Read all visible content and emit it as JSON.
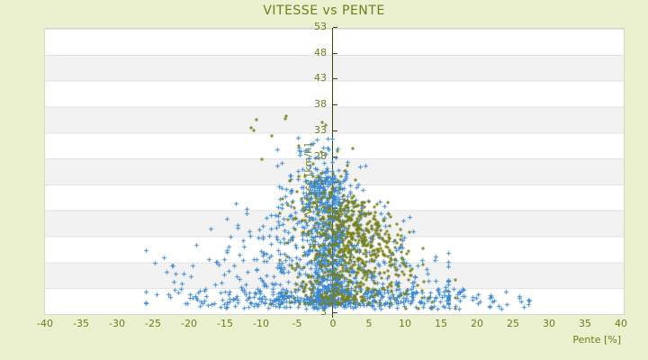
{
  "window": {
    "kind": "static-chart-view"
  },
  "chart_data": {
    "type": "scatter",
    "title": "VITESSE vs PENTE",
    "xlabel": "Pente [%]",
    "ylabel": "Vitesse [km/h]",
    "xlim": [
      -40,
      40
    ],
    "ylim": [
      3,
      53
    ],
    "x_ticks": [
      -40,
      -35,
      -30,
      -25,
      -20,
      -15,
      -10,
      -5,
      0,
      5,
      10,
      15,
      20,
      25,
      30,
      35,
      40
    ],
    "y_ticks": [
      53,
      48,
      43,
      38,
      33,
      28,
      23,
      18,
      13,
      8,
      3
    ],
    "grid": "horizontal-bands-alternating",
    "legend": "none",
    "colors": {
      "background": "#ebf0ce",
      "band_gray": "#f2f2f2",
      "band_white": "#ffffff",
      "axis_line": "#3f470e",
      "label_olive": "#6f7d1c",
      "series_blue": "#3e8ad2",
      "series_olive": "#78801a"
    },
    "series": [
      {
        "name": "vitesse-pente-bleu",
        "marker": "plus",
        "color": "#3e8ad2",
        "approx_count": 1465,
        "clusters": [
          {
            "kind": "column",
            "n": 450,
            "p_mean": -0.5,
            "p_sd": 1.4,
            "v_min": 4.5,
            "v_span": 24,
            "v_pow": 1.5
          },
          {
            "kind": "fan",
            "n": 650,
            "v_min": 4.5,
            "v_span": 22,
            "v_pow": 1.4,
            "p_mean": -2,
            "spread_ref": 29,
            "spread_k": 0.55,
            "p_clip": [
              -26,
              16
            ]
          },
          {
            "kind": "bottom",
            "n": 260,
            "v_min": 3.8,
            "v_span": 3.5,
            "p_mean": 0,
            "p_sd": 8.5,
            "p_clip": [
              -23,
              28
            ]
          },
          {
            "kind": "righttail",
            "n": 60,
            "v_min": 3.8,
            "v_span": 3.5,
            "p_min": 8,
            "p_span": 20
          },
          {
            "kind": "top",
            "n": 45,
            "v_min": 25,
            "v_span": 9,
            "p_mean": -3,
            "p_sd": 2.6
          }
        ]
      },
      {
        "name": "vitesse-pente-olive",
        "marker": "diamond",
        "color": "#78801a",
        "approx_count": 728,
        "clusters": [
          {
            "kind": "column",
            "n": 300,
            "p_mean": 2,
            "p_sd": 2.2,
            "v_min": 4.5,
            "v_span": 18,
            "v_pow": 1.4
          },
          {
            "kind": "diag",
            "n": 300,
            "p_mean": 4.5,
            "p_sd": 4,
            "p_clip": [
              -8,
              17
            ],
            "v_base": 20,
            "v_slope": -0.85,
            "v_noise": 3.2,
            "v_clip": [
              3.8,
              27
            ]
          },
          {
            "kind": "column",
            "n": 110,
            "p_mean": -2.5,
            "p_sd": 2.6,
            "v_min": 4.5,
            "v_span": 20,
            "v_pow": 1.5
          },
          {
            "kind": "top",
            "n": 18,
            "v_min": 26,
            "v_span": 12,
            "p_mean": -3.5,
            "p_sd": 3
          }
        ]
      }
    ]
  }
}
